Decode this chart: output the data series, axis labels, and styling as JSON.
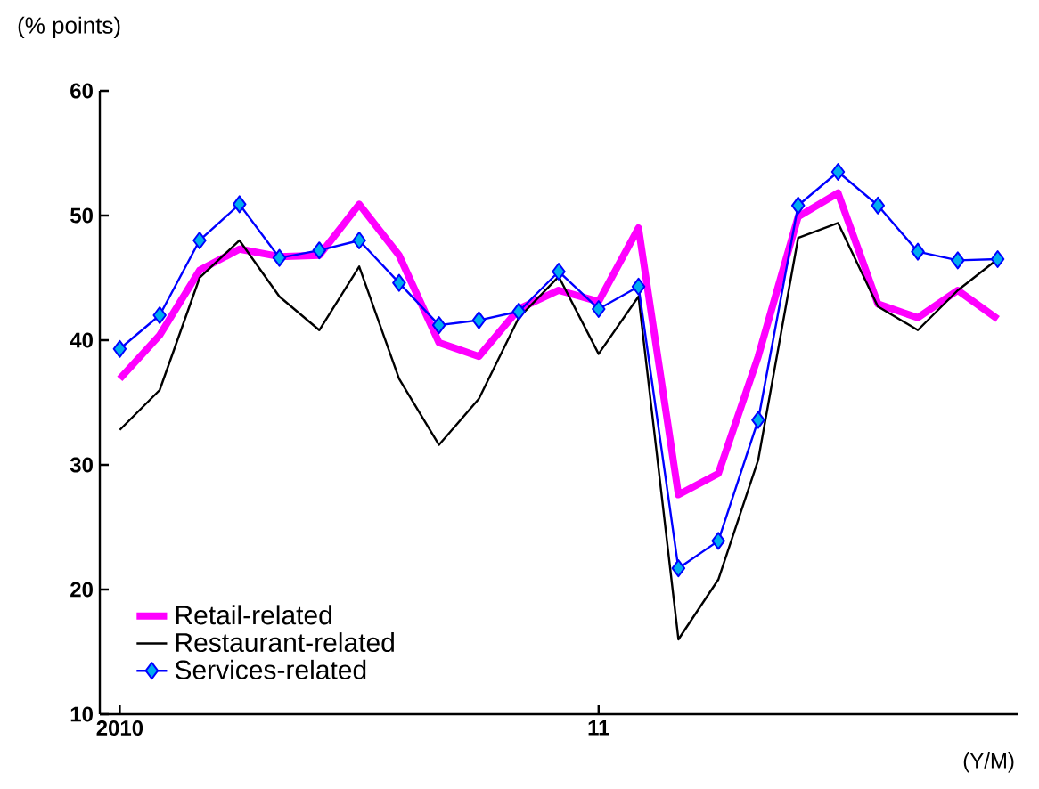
{
  "chart_data": {
    "type": "line",
    "ylabel": "(% points)",
    "xlabel": "(Y/M)",
    "categories": [
      "2010",
      null,
      null,
      null,
      null,
      null,
      null,
      null,
      null,
      null,
      null,
      null,
      "11",
      null,
      null,
      null,
      null,
      null,
      null,
      null,
      null,
      null,
      null
    ],
    "ylim": [
      10,
      60
    ],
    "yticks": [
      10,
      20,
      30,
      40,
      50,
      60
    ],
    "legend": "bottom left",
    "grid": false,
    "series": [
      {
        "name": "Retail-related",
        "color": "#ff00ff",
        "marker": "none",
        "values": [
          36.9,
          40.4,
          45.6,
          47.3,
          46.7,
          46.8,
          50.9,
          46.8,
          39.8,
          38.7,
          42.5,
          44.0,
          43.1,
          49.0,
          27.6,
          29.3,
          38.7,
          49.9,
          51.8,
          42.9,
          41.8,
          44.0,
          41.7
        ]
      },
      {
        "name": "Restaurant-related",
        "color": "#000000",
        "marker": "none",
        "values": [
          32.8,
          36.0,
          45.0,
          48.0,
          43.5,
          40.8,
          45.9,
          36.9,
          31.6,
          35.3,
          41.8,
          45.1,
          38.9,
          43.5,
          16.0,
          20.8,
          30.4,
          48.2,
          49.4,
          42.7,
          40.8,
          44.0,
          46.5
        ]
      },
      {
        "name": "Services-related",
        "color": "#0000ff",
        "marker": "diamond",
        "values": [
          39.3,
          42.0,
          48.0,
          50.9,
          46.6,
          47.2,
          48.0,
          44.6,
          41.2,
          41.6,
          42.3,
          45.5,
          42.5,
          44.3,
          21.7,
          23.9,
          33.6,
          50.8,
          53.5,
          50.8,
          47.1,
          46.4,
          46.5
        ]
      }
    ]
  }
}
